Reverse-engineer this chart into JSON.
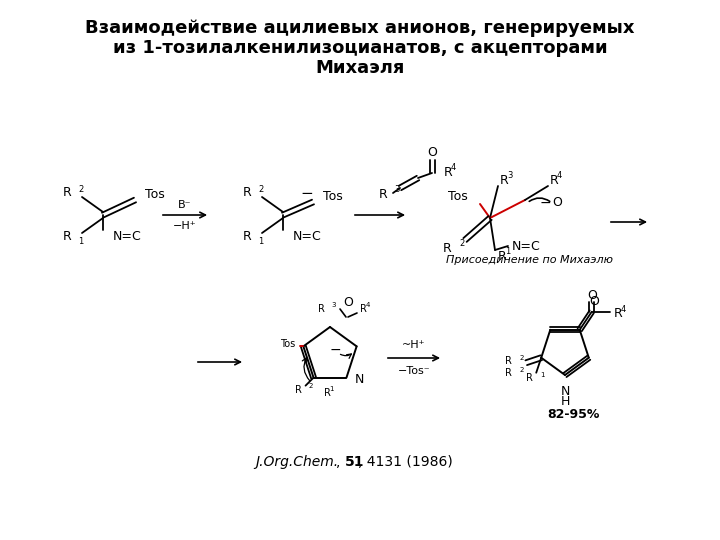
{
  "title_line1": "Взаимодействие ацилиевых анионов, генерируемых",
  "title_line2": "из 1-тозилалкенилизоцианатов, с акцепторами",
  "title_line3": "Михаэля",
  "reference_italic": "J.Org.Chem.",
  "ref_bold": "51",
  "ref_rest": ", 4131 (1986)",
  "michael_addition": "Присоединение по Михаэлю",
  "yield_text": "82-95%",
  "bg_color": "#ffffff",
  "text_color": "#000000",
  "red_color": "#cc0000",
  "title_fontsize": 13,
  "body_fontsize": 9,
  "small_fontsize": 8,
  "tiny_fontsize": 7,
  "super_fontsize": 6
}
